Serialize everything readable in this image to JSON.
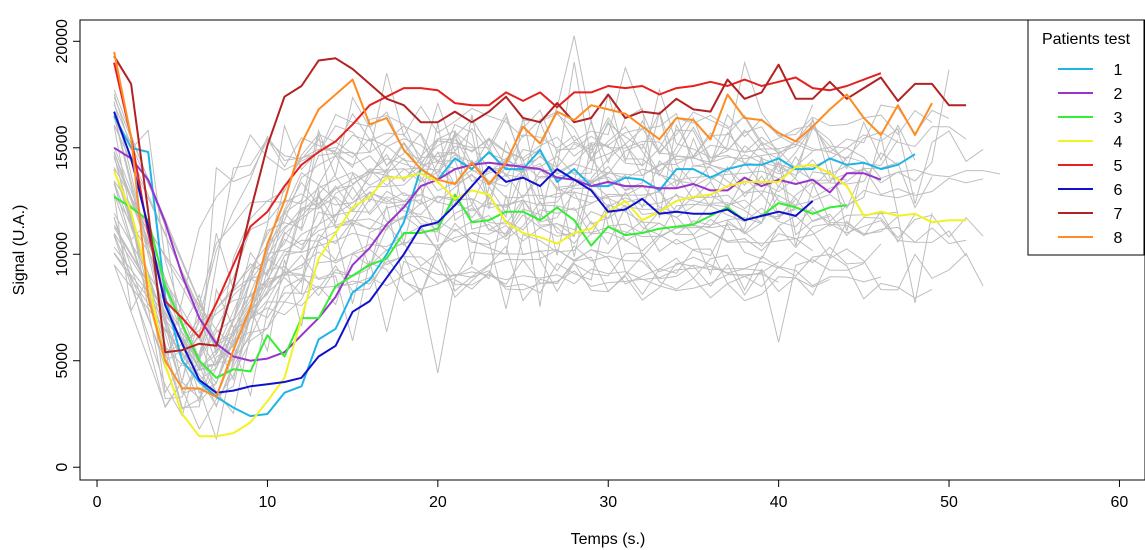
{
  "chart_data": {
    "type": "line",
    "title": "",
    "xlabel": "Temps (s.)",
    "ylabel": "Signal (U.A.)",
    "xlim": [
      -1,
      61.5
    ],
    "ylim": [
      -600,
      21000
    ],
    "xticks": [
      0,
      10,
      20,
      30,
      40,
      50,
      60
    ],
    "yticks": [
      0,
      5000,
      10000,
      15000,
      20000
    ],
    "grid": false,
    "legend": {
      "title": "Patients test",
      "placement": "top-right"
    },
    "background_series": {
      "color": "#bebebe",
      "description_count": 40,
      "seed": 7
    },
    "series": [
      {
        "name": "1",
        "color": "#1fb4e6",
        "x": [
          1,
          2,
          3,
          4,
          5,
          6,
          7,
          8,
          9,
          10,
          11,
          12,
          13,
          14,
          15,
          16,
          17,
          18,
          19,
          20,
          21,
          22,
          23,
          24,
          25,
          26,
          27,
          28,
          29,
          30,
          31,
          32,
          33,
          34,
          35,
          36,
          37,
          38,
          39,
          40,
          41,
          42,
          43,
          44,
          45,
          46,
          47,
          48
        ],
        "y": [
          16500,
          15000,
          14800,
          8000,
          5000,
          4000,
          3300,
          2800,
          2400,
          2500,
          3500,
          3800,
          6000,
          6500,
          8200,
          8800,
          10000,
          11500,
          14000,
          13500,
          14500,
          14000,
          14800,
          14000,
          14000,
          14900,
          13400,
          14000,
          13200,
          13200,
          13600,
          13500,
          13000,
          14000,
          14000,
          13600,
          14000,
          14200,
          14200,
          14500,
          14000,
          14000,
          14500,
          14200,
          14300,
          14000,
          14200,
          14700
        ]
      },
      {
        "name": "2",
        "color": "#9933cc",
        "x": [
          1,
          2,
          3,
          4,
          5,
          6,
          7,
          8,
          9,
          10,
          11,
          12,
          13,
          14,
          15,
          16,
          17,
          18,
          19,
          20,
          21,
          22,
          23,
          24,
          25,
          26,
          27,
          28,
          29,
          30,
          31,
          32,
          33,
          34,
          35,
          36,
          37,
          38,
          39,
          40,
          41,
          42,
          43,
          44,
          45,
          46
        ],
        "y": [
          15000,
          14500,
          13500,
          11500,
          9000,
          7000,
          5800,
          5200,
          5000,
          5100,
          5400,
          6200,
          7000,
          8000,
          9500,
          10300,
          11400,
          12200,
          13200,
          13500,
          14000,
          14200,
          14300,
          14200,
          14100,
          14000,
          13600,
          13500,
          13200,
          13400,
          13200,
          13200,
          13100,
          13100,
          13300,
          13000,
          13000,
          13600,
          13200,
          13500,
          13300,
          13500,
          12900,
          13800,
          13800,
          13500
        ]
      },
      {
        "name": "3",
        "color": "#33ee33",
        "x": [
          1,
          2,
          3,
          4,
          5,
          6,
          7,
          8,
          9,
          10,
          11,
          12,
          13,
          14,
          15,
          16,
          17,
          18,
          19,
          20,
          21,
          22,
          23,
          24,
          25,
          26,
          27,
          28,
          29,
          30,
          31,
          32,
          33,
          34,
          35,
          36,
          37,
          38,
          39,
          40,
          41,
          42,
          43,
          44
        ],
        "y": [
          12700,
          12200,
          11600,
          8500,
          6700,
          5000,
          4200,
          4600,
          4500,
          6200,
          5200,
          7000,
          7000,
          8500,
          9000,
          9500,
          9800,
          11000,
          11000,
          11200,
          12800,
          11500,
          11600,
          12000,
          12000,
          11600,
          12200,
          11600,
          10400,
          11300,
          10900,
          11000,
          11200,
          11300,
          11400,
          11800,
          12200,
          11600,
          11800,
          12400,
          12200,
          11900,
          12200,
          12300
        ]
      },
      {
        "name": "4",
        "color": "#f2f222",
        "x": [
          1,
          2,
          3,
          4,
          5,
          6,
          7,
          8,
          9,
          10,
          11,
          12,
          13,
          14,
          15,
          16,
          17,
          18,
          19,
          20,
          21,
          22,
          23,
          24,
          25,
          26,
          27,
          28,
          29,
          30,
          31,
          32,
          33,
          34,
          35,
          36,
          37,
          38,
          39,
          40,
          41,
          42,
          43,
          44,
          45,
          46,
          47,
          48,
          49,
          50,
          51
        ],
        "y": [
          13900,
          12000,
          8800,
          4800,
          2500,
          1450,
          1450,
          1600,
          2100,
          3100,
          4200,
          7000,
          9800,
          11000,
          12200,
          12700,
          13600,
          13600,
          13800,
          13400,
          12600,
          13000,
          12800,
          11500,
          11000,
          10800,
          10500,
          11000,
          11200,
          12000,
          12500,
          11600,
          12000,
          12500,
          12700,
          12800,
          13200,
          13400,
          13400,
          13400,
          14100,
          14200,
          13800,
          13200,
          11800,
          12000,
          11800,
          11900,
          11500,
          11600,
          11600
        ]
      },
      {
        "name": "5",
        "color": "#e62020",
        "x": [
          1,
          2,
          3,
          4,
          5,
          6,
          7,
          8,
          9,
          10,
          11,
          12,
          13,
          14,
          15,
          16,
          17,
          18,
          19,
          20,
          21,
          22,
          23,
          24,
          25,
          26,
          27,
          28,
          29,
          30,
          31,
          32,
          33,
          34,
          35,
          36,
          37,
          38,
          39,
          40,
          41,
          42,
          43,
          44,
          45,
          46
        ],
        "y": [
          19000,
          15500,
          11000,
          7800,
          7000,
          6100,
          7700,
          9500,
          11300,
          12000,
          13200,
          14200,
          14800,
          15300,
          16100,
          17000,
          17400,
          17800,
          17800,
          17700,
          17100,
          17000,
          17000,
          17600,
          17200,
          17600,
          16900,
          17600,
          17600,
          17900,
          17800,
          17900,
          17500,
          17800,
          17900,
          18100,
          17900,
          18200,
          17900,
          18100,
          18300,
          17800,
          17700,
          17900,
          18200,
          18500
        ]
      },
      {
        "name": "6",
        "color": "#1111cc",
        "x": [
          1,
          2,
          3,
          4,
          5,
          6,
          7,
          8,
          9,
          10,
          11,
          12,
          13,
          14,
          15,
          16,
          17,
          18,
          19,
          20,
          21,
          22,
          23,
          24,
          25,
          26,
          27,
          28,
          29,
          30,
          31,
          32,
          33,
          34,
          35,
          36,
          37,
          38,
          39,
          40,
          41,
          42
        ],
        "y": [
          16700,
          14500,
          11300,
          7600,
          5800,
          4100,
          3500,
          3600,
          3800,
          3900,
          4000,
          4200,
          5200,
          5700,
          7300,
          7800,
          8900,
          10000,
          11300,
          11500,
          12300,
          13200,
          14100,
          13400,
          13600,
          13200,
          14000,
          13500,
          13000,
          12000,
          12100,
          12600,
          11900,
          12000,
          11900,
          11900,
          12100,
          11600,
          11800,
          12000,
          11800,
          12500
        ]
      },
      {
        "name": "7",
        "color": "#b22222",
        "x": [
          1,
          2,
          3,
          4,
          5,
          6,
          7,
          8,
          9,
          10,
          11,
          12,
          13,
          14,
          15,
          16,
          17,
          18,
          19,
          20,
          21,
          22,
          23,
          24,
          25,
          26,
          27,
          28,
          29,
          30,
          31,
          32,
          33,
          34,
          35,
          36,
          37,
          38,
          39,
          40,
          41,
          42,
          43,
          44,
          45,
          46,
          47,
          48,
          49,
          50,
          51
        ],
        "y": [
          19300,
          18000,
          12000,
          5400,
          5500,
          5800,
          5700,
          8500,
          12000,
          15100,
          17400,
          17900,
          19100,
          19200,
          18700,
          18000,
          17300,
          17000,
          16200,
          16200,
          16700,
          16200,
          16700,
          17400,
          16400,
          16200,
          17100,
          16200,
          16400,
          17500,
          16400,
          16700,
          16600,
          17300,
          16800,
          16700,
          18200,
          17300,
          17600,
          18900,
          17300,
          17300,
          18100,
          17300,
          17800,
          18300,
          17200,
          18000,
          18000,
          17000,
          17000
        ]
      },
      {
        "name": "8",
        "color": "#ff8c22",
        "x": [
          1,
          2,
          3,
          4,
          5,
          6,
          7,
          8,
          9,
          10,
          11,
          12,
          13,
          14,
          15,
          16,
          17,
          18,
          19,
          20,
          21,
          22,
          23,
          24,
          25,
          26,
          27,
          28,
          29,
          30,
          31,
          32,
          33,
          34,
          35,
          36,
          37,
          38,
          39,
          40,
          41,
          42,
          43,
          44,
          45,
          46,
          47,
          48,
          49
        ],
        "y": [
          19500,
          15500,
          8000,
          5000,
          3700,
          3700,
          3300,
          5500,
          7500,
          10500,
          12500,
          15200,
          16800,
          17500,
          18200,
          16100,
          16400,
          14900,
          14000,
          13500,
          13300,
          14300,
          13300,
          14300,
          16000,
          15200,
          16700,
          16300,
          17000,
          16800,
          16600,
          16000,
          15400,
          16400,
          16300,
          15400,
          17500,
          16400,
          16300,
          15700,
          15300,
          16000,
          16800,
          17500,
          16400,
          15600,
          17000,
          15600,
          17100
        ]
      }
    ]
  }
}
